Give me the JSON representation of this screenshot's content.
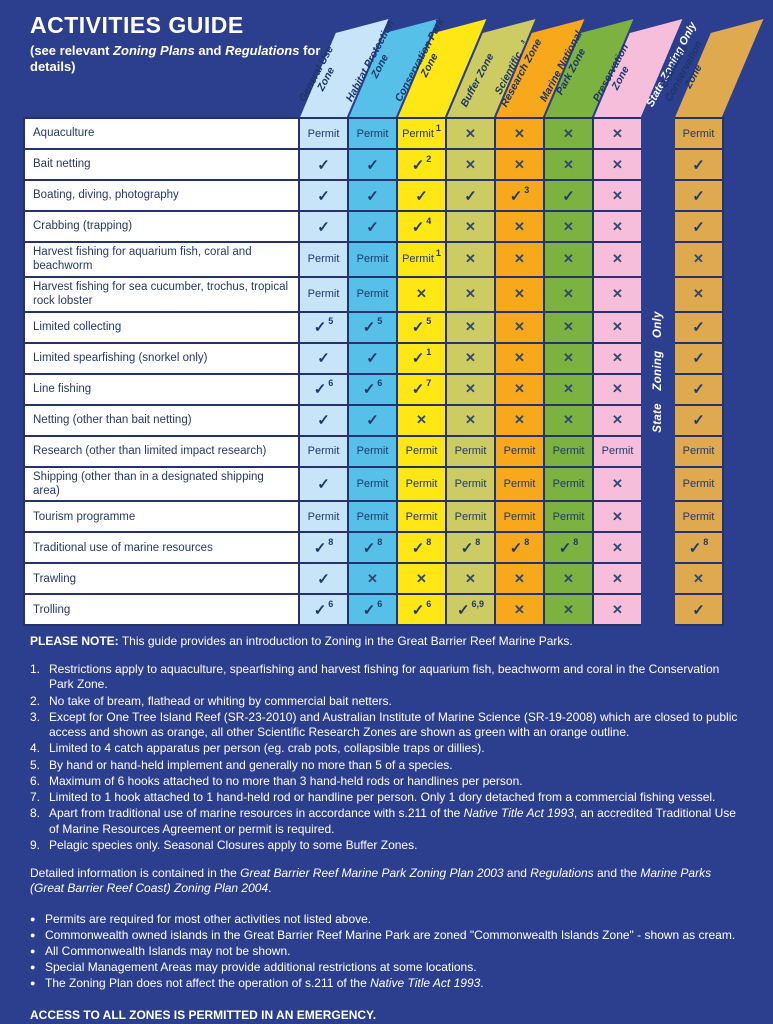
{
  "title": {
    "heading": "ACTIVITIES GUIDE",
    "subtitle": "(see relevant *Zoning Plans* and *Regulations* for details)"
  },
  "colors": {
    "background": "#2c3e8e",
    "grid_line": "#243270",
    "symbol_navy": "#1e3a6e"
  },
  "zones": [
    {
      "label": "General Use\nZone",
      "color": "#c8e4f8"
    },
    {
      "label": "Habitat Protection\nZone",
      "color": "#56c0e8"
    },
    {
      "label": "Conservation Park\nZone",
      "color": "#ffe716"
    },
    {
      "label": "Buffer Zone",
      "color": "#cccc63"
    },
    {
      "label": "Scientific   ³\nResearch Zone",
      "color": "#f8a81b"
    },
    {
      "label": "Marine National\nPark Zone",
      "color": "#7cb23f"
    },
    {
      "label": "Preservation\nZone",
      "color": "#f6bedb"
    },
    {
      "label": "State Zoning Only",
      "color": "#2c3e8e",
      "separator": true
    },
    {
      "label": "Estuarine\nConservation\nZone",
      "color": "#dfa94f"
    }
  ],
  "separator_text": "State Zoning Only",
  "symbols": {
    "permit": "Permit",
    "check": "✓",
    "cross": "✕"
  },
  "table": {
    "rows": [
      {
        "activity": "Aquaculture",
        "cells": [
          "P",
          "P",
          "P1",
          "X",
          "X",
          "X",
          "X",
          "P"
        ]
      },
      {
        "activity": "Bait netting",
        "cells": [
          "C",
          "C",
          "C2",
          "X",
          "X",
          "X",
          "X",
          "C"
        ]
      },
      {
        "activity": "Boating, diving, photography",
        "cells": [
          "C",
          "C",
          "C",
          "C",
          "C3",
          "C",
          "X",
          "C"
        ]
      },
      {
        "activity": "Crabbing (trapping)",
        "cells": [
          "C",
          "C",
          "C4",
          "X",
          "X",
          "X",
          "X",
          "C"
        ]
      },
      {
        "activity": "Harvest fishing for aquarium fish, coral and beachworm",
        "cells": [
          "P",
          "P",
          "P1",
          "X",
          "X",
          "X",
          "X",
          "X"
        ]
      },
      {
        "activity": "Harvest fishing for sea cucumber, trochus, tropical rock lobster",
        "cells": [
          "P",
          "P",
          "X",
          "X",
          "X",
          "X",
          "X",
          "X"
        ]
      },
      {
        "activity": "Limited collecting",
        "cells": [
          "C5",
          "C5",
          "C5",
          "X",
          "X",
          "X",
          "X",
          "C"
        ]
      },
      {
        "activity": "Limited spearfishing (snorkel only)",
        "cells": [
          "C",
          "C",
          "C1",
          "X",
          "X",
          "X",
          "X",
          "C"
        ]
      },
      {
        "activity": "Line fishing",
        "cells": [
          "C6",
          "C6",
          "C7",
          "X",
          "X",
          "X",
          "X",
          "C"
        ]
      },
      {
        "activity": "Netting (other than bait netting)",
        "cells": [
          "C",
          "C",
          "X",
          "X",
          "X",
          "X",
          "X",
          "C"
        ]
      },
      {
        "activity": "Research (other than limited impact research)",
        "cells": [
          "P",
          "P",
          "P",
          "P",
          "P",
          "P",
          "P",
          "P"
        ]
      },
      {
        "activity": "Shipping (other than in a designated shipping area)",
        "cells": [
          "C",
          "P",
          "P",
          "P",
          "P",
          "P",
          "X",
          "P"
        ]
      },
      {
        "activity": "Tourism programme",
        "cells": [
          "P",
          "P",
          "P",
          "P",
          "P",
          "P",
          "X",
          "P"
        ]
      },
      {
        "activity": "Traditional use of marine resources",
        "cells": [
          "C8",
          "C8",
          "C8",
          "C8",
          "C8",
          "C8",
          "X",
          "C8"
        ]
      },
      {
        "activity": "Trawling",
        "cells": [
          "C",
          "X",
          "X",
          "X",
          "X",
          "X",
          "X",
          "X"
        ]
      },
      {
        "activity": "Trolling",
        "cells": [
          "C6",
          "C6",
          "C6",
          "C6,9",
          "X",
          "X",
          "X",
          "C"
        ]
      }
    ]
  },
  "note": {
    "label": "PLEASE NOTE:",
    "text": "This guide provides an introduction to Zoning in the Great Barrier Reef Marine Parks."
  },
  "footnotes": [
    {
      "num": "1.",
      "text": "Restrictions apply to aquaculture, spearfishing and harvest fishing for aquarium fish, beachworm and coral in the Conservation Park Zone."
    },
    {
      "num": "2.",
      "text": "No take of bream, flathead or whiting by commercial bait netters."
    },
    {
      "num": "3.",
      "text": "Except for One Tree Island Reef (SR-23-2010) and Australian Institute of Marine Science (SR-19-2008) which are closed to public access and shown as orange, all other Scientific Research Zones are shown as green with an orange outline."
    },
    {
      "num": "4.",
      "text": "Limited to 4 catch apparatus per person (eg. crab pots, collapsible traps or dillies)."
    },
    {
      "num": "5.",
      "text": "By hand or hand-held implement and generally no more than 5 of a species."
    },
    {
      "num": "6.",
      "text": "Maximum of 6 hooks attached to no more than 3 hand-held rods or handlines per person."
    },
    {
      "num": "7.",
      "text": "Limited to 1 hook attached to 1 hand-held rod or handline per person. Only 1 dory detached from a commercial fishing vessel."
    },
    {
      "num": "8.",
      "text": "Apart from traditional use of marine resources in accordance with s.211 of the *Native Title Act 1993*, an accredited Traditional Use of Marine Resources Agreement or permit is required."
    },
    {
      "num": "9.",
      "text": "Pelagic species only.  Seasonal Closures apply to some Buffer Zones."
    }
  ],
  "detailed_info": "Detailed information is contained in the *Great Barrier Reef Marine Park Zoning Plan 2003*  and *Regulations* and the *Marine Parks (Great Barrier Reef Coast) Zoning Plan 2004*.",
  "bullets": [
    "Permits are required for most other activities not listed above.",
    "Commonwealth owned islands in the Great Barrier Reef Marine Park are zoned \"Commonwealth Islands Zone\" - shown as cream.",
    "All Commonwealth Islands may not be shown.",
    "Special Management Areas may provide additional restrictions at some locations.",
    "The Zoning Plan does not affect the operation of s.211 of the *Native Title Act 1993*."
  ],
  "access_line": "ACCESS TO ALL ZONES IS PERMITTED IN AN EMERGENCY."
}
